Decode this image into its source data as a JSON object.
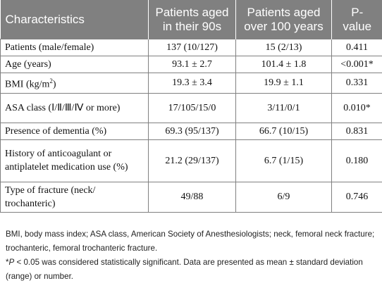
{
  "table": {
    "headers": [
      {
        "text": "Characteristics"
      },
      {
        "text": "Patients aged in their 90s"
      },
      {
        "text": "Patients aged over 100 years"
      },
      {
        "text": "P-value"
      }
    ],
    "rows": [
      {
        "label": "Patients (male/female)",
        "col1": "137 (10/127)",
        "col2": "15 (2/13)",
        "p": "0.411"
      },
      {
        "label": "Age (years)",
        "col1": "93.1 ± 2.7",
        "col2": "101.4 ± 1.8",
        "p": "<0.001*"
      },
      {
        "label_main": "BMI (kg/m",
        "label_sup": "2",
        "label_end": ")",
        "col1": "19.3 ± 3.4",
        "col2": "19.9 ± 1.1",
        "p": "0.331"
      },
      {
        "label": "ASA class (Ⅰ/Ⅱ/Ⅲ/Ⅳ or more)",
        "col1": "17/105/15/0",
        "col2": "3/11/0/1",
        "p": "0.010*"
      },
      {
        "label": "Presence of dementia (%)",
        "col1": "69.3 (95/137)",
        "col2": "66.7 (10/15)",
        "p": "0.831"
      },
      {
        "label": "History of anticoagulant or antiplatelet medication use (%)",
        "col1": "21.2 (29/137)",
        "col2": "6.7 (1/15)",
        "p": "0.180"
      },
      {
        "label": "Type of fracture (neck/ trochanteric)",
        "col1": "49/88",
        "col2": "6/9",
        "p": "0.746"
      }
    ]
  },
  "notes": {
    "line1": "BMI, body mass index; ASA class, American Society of Anesthesiologists; neck, femoral neck fracture; trochanteric, femoral trochanteric fracture.",
    "line2_star": "*",
    "line2_p": "P",
    "line2_rest": " < 0.05 was considered statistically significant. Data are presented as mean ± standard deviation (range) or number."
  }
}
